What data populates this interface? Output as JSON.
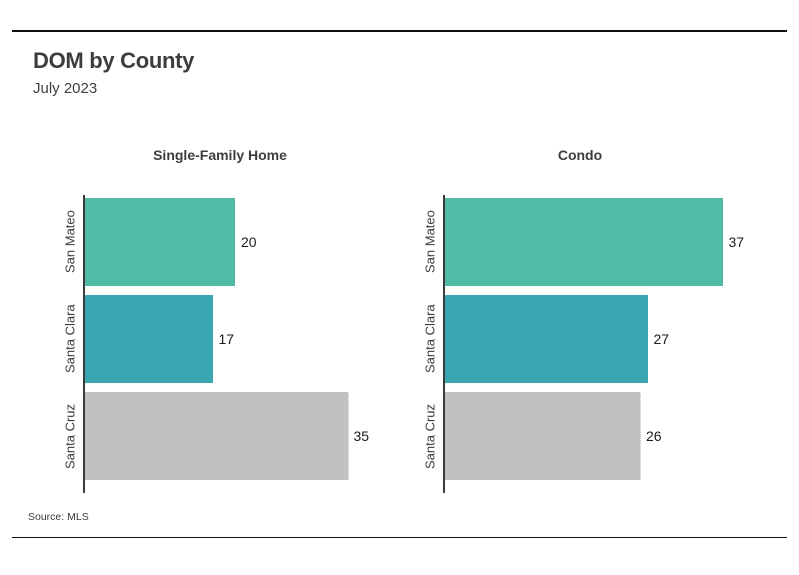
{
  "header": {
    "title": "DOM by County",
    "subtitle": "July 2023"
  },
  "footer": {
    "source": "Source: MLS"
  },
  "chart_data": {
    "type": "bar",
    "orientation": "horizontal",
    "title": "DOM by County",
    "subtitle": "July 2023",
    "source": "Source: MLS",
    "categories": [
      "San Mateo",
      "Santa Clara",
      "Santa Cruz"
    ],
    "facets": [
      {
        "title": "Single-Family Home",
        "values": [
          20,
          17,
          35
        ]
      },
      {
        "title": "Condo",
        "values": [
          37,
          27,
          26
        ]
      }
    ],
    "xlim": [
      0,
      40
    ],
    "bar_colors": [
      "#4fbca6",
      "#3aa6b2",
      "#c1c1c1"
    ],
    "value_labels": true,
    "grid": false,
    "legend": "none"
  }
}
